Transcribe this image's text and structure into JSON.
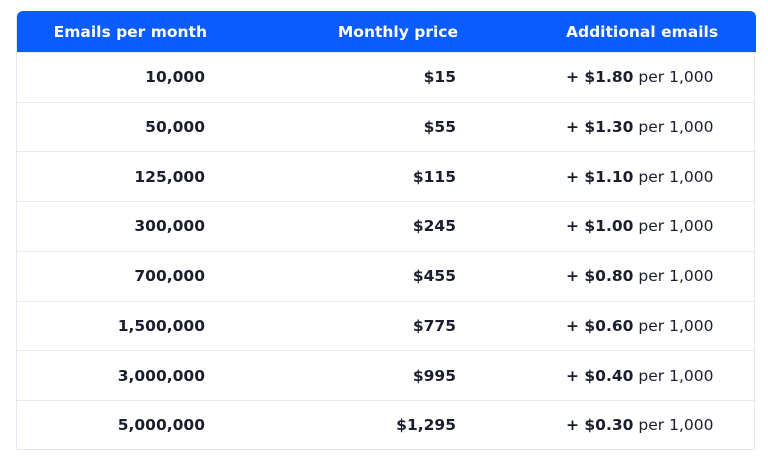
{
  "table": {
    "header": [
      "Emails per month",
      "Monthly price",
      "Additional emails"
    ],
    "rows": [
      [
        "10,000",
        "$15",
        [
          "+ $1.80",
          "per 1,000"
        ]
      ],
      [
        "50,000",
        "$55",
        [
          "+ $1.30",
          "per 1,000"
        ]
      ],
      [
        "125,000",
        "$115",
        [
          "+ $1.10",
          "per 1,000"
        ]
      ],
      [
        "300,000",
        "$245",
        [
          "+ $1.00",
          "per 1,000"
        ]
      ],
      [
        "700,000",
        "$455",
        [
          "+ $0.80",
          "per 1,000"
        ]
      ],
      [
        "1,500,000",
        "$775",
        [
          "+ $0.60",
          "per 1,000"
        ]
      ],
      [
        "3,000,000",
        "$995",
        [
          "+ $0.40",
          "per 1,000"
        ]
      ],
      [
        "5,000,000",
        "$1,295",
        [
          "+ $0.30",
          "per 1,000"
        ]
      ]
    ]
  }
}
